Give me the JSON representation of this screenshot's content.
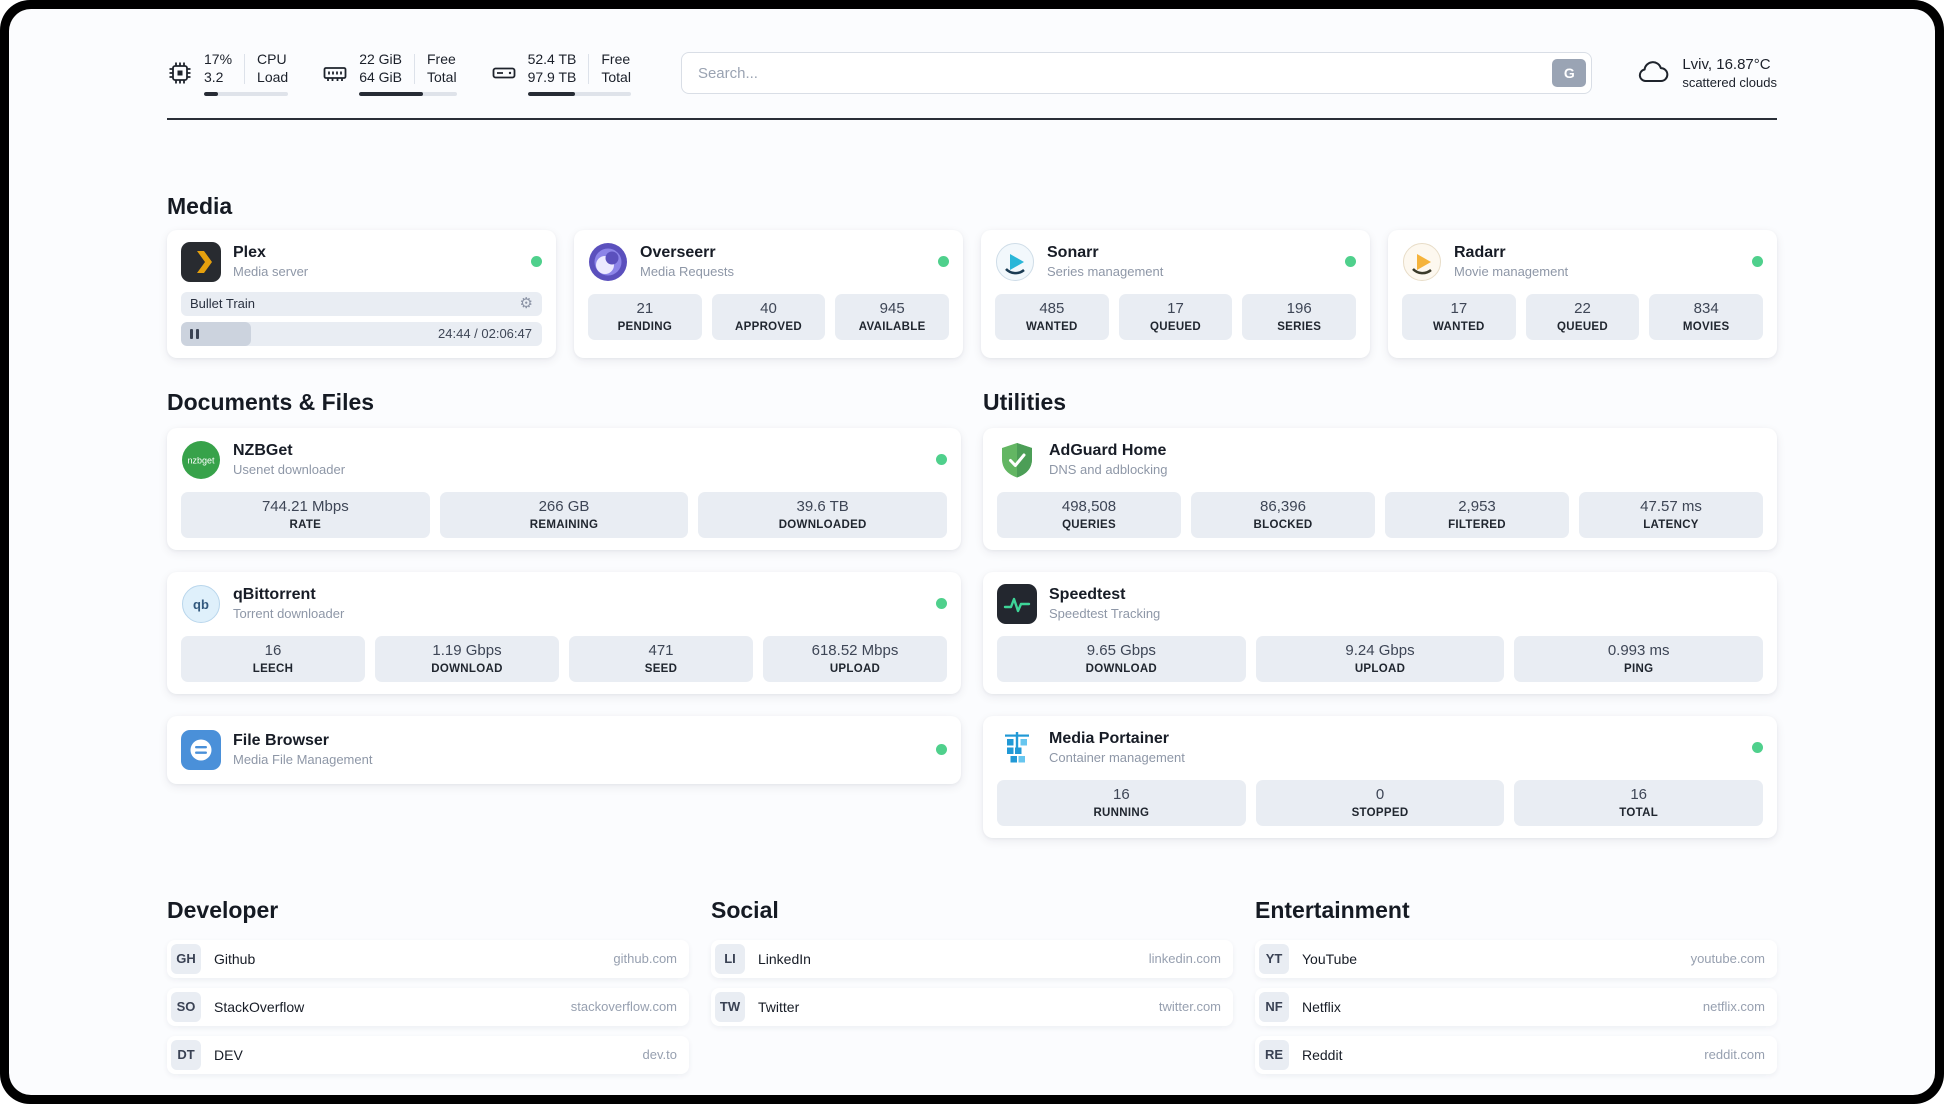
{
  "topbar": {
    "cpu": {
      "value": "17%",
      "total": "3.2",
      "label_top": "CPU",
      "label_bottom": "Load",
      "percent": 17
    },
    "ram": {
      "value": "22 GiB",
      "total": "64 GiB",
      "label_top": "Free",
      "label_bottom": "Total",
      "percent": 66
    },
    "disk": {
      "value": "52.4 TB",
      "total": "97.9 TB",
      "label_top": "Free",
      "label_bottom": "Total",
      "percent": 46
    },
    "search": {
      "placeholder": "Search...",
      "engine_label": "G"
    },
    "weather": {
      "location": "Lviv, 16.87°C",
      "condition": "scattered clouds"
    }
  },
  "media": {
    "title": "Media",
    "plex": {
      "name": "Plex",
      "subtitle": "Media server",
      "now_playing": "Bullet Train",
      "time": "24:44 / 02:06:47",
      "progress_percent": 19.5
    },
    "overseerr": {
      "name": "Overseerr",
      "subtitle": "Media Requests",
      "stats": [
        {
          "value": "21",
          "label": "PENDING"
        },
        {
          "value": "40",
          "label": "APPROVED"
        },
        {
          "value": "945",
          "label": "AVAILABLE"
        }
      ]
    },
    "sonarr": {
      "name": "Sonarr",
      "subtitle": "Series management",
      "stats": [
        {
          "value": "485",
          "label": "WANTED"
        },
        {
          "value": "17",
          "label": "QUEUED"
        },
        {
          "value": "196",
          "label": "SERIES"
        }
      ]
    },
    "radarr": {
      "name": "Radarr",
      "subtitle": "Movie management",
      "stats": [
        {
          "value": "17",
          "label": "WANTED"
        },
        {
          "value": "22",
          "label": "QUEUED"
        },
        {
          "value": "834",
          "label": "MOVIES"
        }
      ]
    }
  },
  "documents": {
    "title": "Documents & Files",
    "nzbget": {
      "name": "NZBGet",
      "subtitle": "Usenet downloader",
      "stats": [
        {
          "value": "744.21 Mbps",
          "label": "RATE"
        },
        {
          "value": "266 GB",
          "label": "REMAINING"
        },
        {
          "value": "39.6 TB",
          "label": "DOWNLOADED"
        }
      ]
    },
    "qbittorrent": {
      "name": "qBittorrent",
      "subtitle": "Torrent downloader",
      "stats": [
        {
          "value": "16",
          "label": "LEECH"
        },
        {
          "value": "1.19 Gbps",
          "label": "DOWNLOAD"
        },
        {
          "value": "471",
          "label": "SEED"
        },
        {
          "value": "618.52 Mbps",
          "label": "UPLOAD"
        }
      ]
    },
    "filebrowser": {
      "name": "File Browser",
      "subtitle": "Media File Management"
    }
  },
  "utilities": {
    "title": "Utilities",
    "adguard": {
      "name": "AdGuard Home",
      "subtitle": "DNS and adblocking",
      "stats": [
        {
          "value": "498,508",
          "label": "QUERIES"
        },
        {
          "value": "86,396",
          "label": "BLOCKED"
        },
        {
          "value": "2,953",
          "label": "FILTERED"
        },
        {
          "value": "47.57 ms",
          "label": "LATENCY"
        }
      ]
    },
    "speedtest": {
      "name": "Speedtest",
      "subtitle": "Speedtest Tracking",
      "stats": [
        {
          "value": "9.65 Gbps",
          "label": "DOWNLOAD"
        },
        {
          "value": "9.24 Gbps",
          "label": "UPLOAD"
        },
        {
          "value": "0.993 ms",
          "label": "PING"
        }
      ]
    },
    "portainer": {
      "name": "Media Portainer",
      "subtitle": "Container management",
      "stats": [
        {
          "value": "16",
          "label": "RUNNING"
        },
        {
          "value": "0",
          "label": "STOPPED"
        },
        {
          "value": "16",
          "label": "TOTAL"
        }
      ]
    }
  },
  "bookmarks": {
    "developer": {
      "title": "Developer",
      "links": [
        {
          "abbr": "GH",
          "name": "Github",
          "url": "github.com"
        },
        {
          "abbr": "SO",
          "name": "StackOverflow",
          "url": "stackoverflow.com"
        },
        {
          "abbr": "DT",
          "name": "DEV",
          "url": "dev.to"
        }
      ]
    },
    "social": {
      "title": "Social",
      "links": [
        {
          "abbr": "LI",
          "name": "LinkedIn",
          "url": "linkedin.com"
        },
        {
          "abbr": "TW",
          "name": "Twitter",
          "url": "twitter.com"
        }
      ]
    },
    "entertainment": {
      "title": "Entertainment",
      "links": [
        {
          "abbr": "YT",
          "name": "YouTube",
          "url": "youtube.com"
        },
        {
          "abbr": "NF",
          "name": "Netflix",
          "url": "netflix.com"
        },
        {
          "abbr": "RE",
          "name": "Reddit",
          "url": "reddit.com"
        }
      ]
    }
  }
}
